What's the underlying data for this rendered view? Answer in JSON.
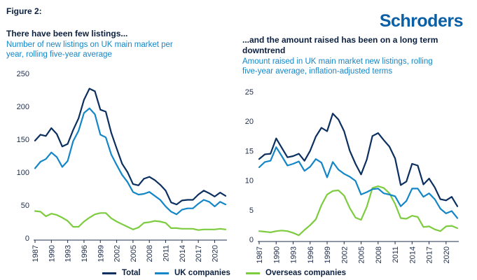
{
  "figure_label": "Figure 2:",
  "brand": "Schroders",
  "colors": {
    "total": "#0b2f5f",
    "uk": "#1386c8",
    "overseas": "#7dcb3f"
  },
  "legend": [
    {
      "key": "total",
      "label": "Total"
    },
    {
      "key": "uk",
      "label": "UK companies"
    },
    {
      "key": "overseas",
      "label": "Overseas companies"
    }
  ],
  "chart_data": [
    {
      "type": "line",
      "title": "There have been few listings...",
      "subtitle": "Number of new listings on UK main market per year, rolling five-year average",
      "ylim": [
        0,
        250
      ],
      "yticks": [
        0,
        50,
        100,
        150,
        200,
        250
      ],
      "xticks": [
        1987,
        1990,
        1993,
        1996,
        1999,
        2002,
        2005,
        2008,
        2011,
        2014,
        2017,
        2020
      ],
      "x": [
        1987,
        1988,
        1989,
        1990,
        1991,
        1992,
        1993,
        1994,
        1995,
        1996,
        1997,
        1998,
        1999,
        2000,
        2001,
        2002,
        2003,
        2004,
        2005,
        2006,
        2007,
        2008,
        2009,
        2010,
        2011,
        2012,
        2013,
        2014,
        2015,
        2016,
        2017,
        2018,
        2019,
        2020,
        2021,
        2022
      ],
      "series": [
        {
          "key": "total",
          "name": "Total",
          "values": [
            148,
            157,
            155,
            167,
            158,
            139,
            143,
            164,
            182,
            210,
            227,
            223,
            195,
            192,
            160,
            136,
            113,
            100,
            82,
            80,
            90,
            93,
            88,
            81,
            72,
            54,
            51,
            57,
            58,
            58,
            66,
            72,
            68,
            63,
            69,
            64
          ]
        },
        {
          "key": "uk",
          "name": "UK companies",
          "values": [
            106,
            116,
            120,
            130,
            123,
            108,
            117,
            147,
            163,
            190,
            197,
            188,
            157,
            153,
            127,
            111,
            96,
            85,
            70,
            66,
            67,
            70,
            64,
            58,
            48,
            40,
            36,
            43,
            45,
            45,
            52,
            58,
            55,
            48,
            55,
            51
          ]
        },
        {
          "key": "overseas",
          "name": "Overseas companies",
          "values": [
            41,
            40,
            33,
            37,
            35,
            31,
            26,
            17,
            17,
            25,
            31,
            36,
            38,
            38,
            30,
            25,
            21,
            17,
            13,
            16,
            23,
            24,
            26,
            25,
            23,
            15,
            15,
            14,
            14,
            14,
            12,
            13,
            13,
            13,
            14,
            13
          ]
        }
      ]
    },
    {
      "type": "line",
      "title": "...and the amount raised has been on a long term downtrend",
      "subtitle": "Amount raised in UK main market new listings, rolling five-year average, inflation-adjusted terms",
      "ylim": [
        0,
        25
      ],
      "yticks": [
        0,
        5,
        10,
        15,
        20,
        25
      ],
      "xticks": [
        1987,
        1990,
        1993,
        1996,
        1999,
        2002,
        2005,
        2008,
        2011,
        2014,
        2017,
        2020
      ],
      "x": [
        1987,
        1988,
        1989,
        1990,
        1991,
        1992,
        1993,
        1994,
        1995,
        1996,
        1997,
        1998,
        1999,
        2000,
        2001,
        2002,
        2003,
        2004,
        2005,
        2006,
        2007,
        2008,
        2009,
        2010,
        2011,
        2012,
        2013,
        2014,
        2015,
        2016,
        2017,
        2018,
        2019,
        2020,
        2021,
        2022
      ],
      "series": [
        {
          "key": "total",
          "name": "Total",
          "values": [
            13.6,
            14.4,
            14.5,
            17.1,
            15.5,
            13.9,
            14.1,
            14.5,
            13.3,
            15.0,
            17.4,
            18.9,
            18.3,
            21.3,
            20.3,
            18.3,
            15.0,
            12.8,
            11.0,
            13.5,
            17.5,
            18.0,
            16.8,
            15.7,
            13.7,
            9.2,
            9.8,
            12.8,
            12.5,
            9.3,
            10.3,
            8.8,
            6.8,
            6.6,
            7.2,
            5.6
          ]
        },
        {
          "key": "uk",
          "name": "UK companies",
          "values": [
            12.2,
            13.1,
            13.3,
            15.6,
            14.1,
            12.5,
            12.8,
            13.2,
            11.6,
            12.3,
            13.6,
            13.0,
            10.5,
            13.1,
            11.8,
            11.1,
            10.6,
            9.9,
            7.6,
            8.0,
            8.5,
            8.6,
            7.8,
            7.6,
            7.3,
            5.6,
            6.5,
            8.6,
            8.6,
            7.2,
            7.8,
            6.8,
            5.2,
            4.4,
            4.8,
            3.6
          ]
        },
        {
          "key": "overseas",
          "name": "Overseas companies",
          "values": [
            1.4,
            1.3,
            1.2,
            1.4,
            1.5,
            1.4,
            1.1,
            0.7,
            1.6,
            2.4,
            3.4,
            5.8,
            7.6,
            8.2,
            8.3,
            7.4,
            5.3,
            3.7,
            3.3,
            5.5,
            8.7,
            9.0,
            8.7,
            7.8,
            6.0,
            3.6,
            3.5,
            4.0,
            3.8,
            2.1,
            2.2,
            1.7,
            1.4,
            2.2,
            2.3,
            1.9
          ]
        }
      ]
    }
  ]
}
